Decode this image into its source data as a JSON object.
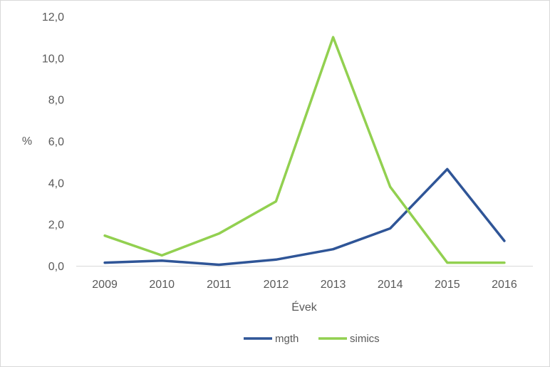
{
  "chart_data": {
    "type": "line",
    "categories": [
      "2009",
      "2010",
      "2011",
      "2012",
      "2013",
      "2014",
      "2015",
      "2016"
    ],
    "series": [
      {
        "name": "mgth",
        "color": "#2f5597",
        "values": [
          0.15,
          0.25,
          0.05,
          0.3,
          0.8,
          1.8,
          4.65,
          1.2
        ]
      },
      {
        "name": "simics",
        "color": "#92d050",
        "values": [
          1.45,
          0.5,
          1.55,
          3.1,
          11.0,
          3.8,
          0.15,
          0.15
        ]
      }
    ],
    "xlabel": "Évek",
    "ylabel": "%",
    "ylim": [
      0,
      12
    ],
    "yticks": [
      "0,0",
      "2,0",
      "4,0",
      "6,0",
      "8,0",
      "10,0",
      "12,0"
    ],
    "ytick_values": [
      0,
      2,
      4,
      6,
      8,
      10,
      12
    ],
    "grid": false,
    "legend": "bottom"
  }
}
